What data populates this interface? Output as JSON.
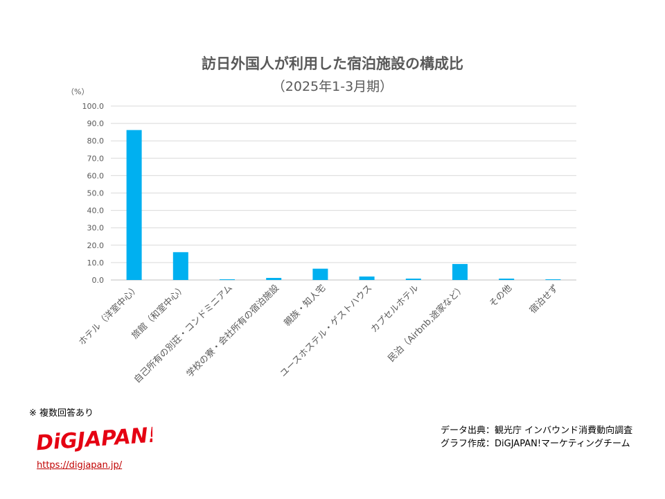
{
  "chart_data": {
    "type": "bar",
    "title": "訪日外国人が利用した宿泊施設の構成比",
    "subtitle": "（2025年1-3月期）",
    "ylabel": "（%）",
    "ylim": [
      0,
      100
    ],
    "yticks": [
      "100.0",
      "90.0",
      "80.0",
      "70.0",
      "60.0",
      "50.0",
      "40.0",
      "30.0",
      "20.0",
      "10.0",
      "0.0"
    ],
    "grid": true,
    "color": "#00b0f0",
    "categories": [
      "ホテル（洋室中心）",
      "旅館（和室中心）",
      "自己所有の別荘・コンドミニアム",
      "学校の寮・会社所有の宿泊施設",
      "親族・知人宅",
      "ユースホステル・ゲストハウス",
      "カプセルホテル",
      "民泊（Airbnb,途家など）",
      "その他",
      "宿泊せず"
    ],
    "values": [
      86.2,
      16.0,
      0.4,
      1.2,
      6.5,
      2.0,
      0.8,
      9.2,
      0.8,
      0.4
    ]
  },
  "note": "※ 複数回答あり",
  "logo": {
    "text": "DiGJAPAN!",
    "color": "#e50012"
  },
  "url": "https://digjapan.jp/",
  "credits": {
    "source": "データ出典：観光庁 インバウンド消費動向調査",
    "author": "グラフ作成：DiGJAPAN!マーケティングチーム"
  }
}
